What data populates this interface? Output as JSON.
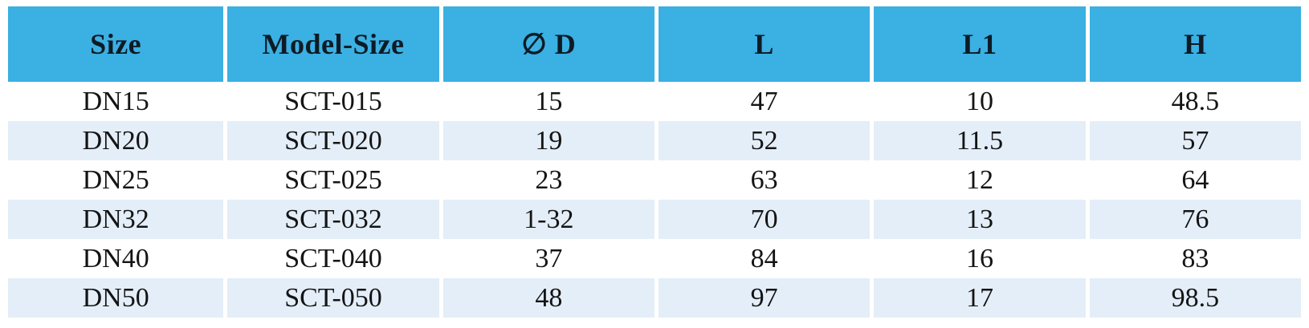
{
  "table": {
    "columns": [
      "Size",
      "Model-Size",
      "∅ D",
      "L",
      "L1",
      "H"
    ],
    "rows": [
      [
        "DN15",
        "SCT-015",
        "15",
        "47",
        "10",
        "48.5"
      ],
      [
        "DN20",
        "SCT-020",
        "19",
        "52",
        "11.5",
        "57"
      ],
      [
        "DN25",
        "SCT-025",
        "23",
        "63",
        "12",
        "64"
      ],
      [
        "DN32",
        "SCT-032",
        "1-32",
        "70",
        "13",
        "76"
      ],
      [
        "DN40",
        "SCT-040",
        "37",
        "84",
        "16",
        "83"
      ],
      [
        "DN50",
        "SCT-050",
        "48",
        "97",
        "17",
        "98.5"
      ]
    ]
  },
  "colors": {
    "header_bg": "#3BB0E2",
    "stripe_bg": "#E4EEF8",
    "header_text": "#0D1B26",
    "body_text": "#141414"
  }
}
